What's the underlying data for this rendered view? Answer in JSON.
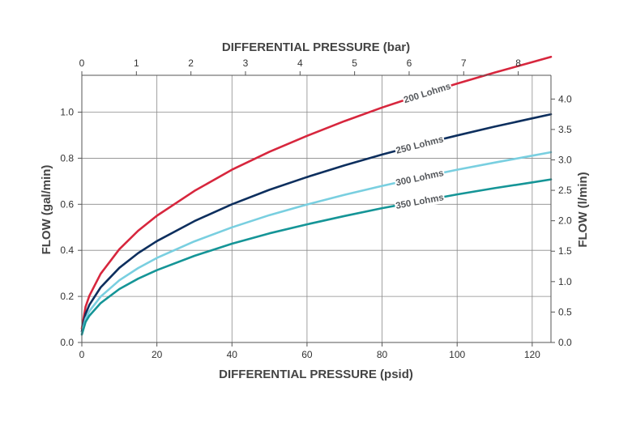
{
  "chart_data": {
    "type": "line",
    "title": "",
    "xlabel": "DIFFERENTIAL PRESSURE (psid)",
    "x2label": "DIFFERENTIAL PRESSURE (bar)",
    "ylabel": "FLOW (gal/min)",
    "y2label": "FLOW (l/min)",
    "xlim": [
      0,
      125
    ],
    "ylim": [
      0,
      1.16
    ],
    "x2lim": [
      0,
      8.6
    ],
    "y2lim": [
      0,
      4.39
    ],
    "xticks": [
      0,
      20,
      40,
      60,
      80,
      100,
      120
    ],
    "yticks": [
      "0.0",
      "0.2",
      "0.4",
      "0.6",
      "0.8",
      "1.0"
    ],
    "x2ticks": [
      0,
      1,
      2,
      3,
      4,
      5,
      6,
      7,
      8
    ],
    "y2ticks": [
      "0.0",
      "0.5",
      "1.0",
      "1.5",
      "2.0",
      "2.5",
      "3.0",
      "3.5",
      "4.0"
    ],
    "grid": true,
    "legend": "inline labels on curves",
    "x": [
      0,
      1,
      2,
      5,
      10,
      15,
      20,
      30,
      40,
      50,
      60,
      70,
      80,
      90,
      100,
      110,
      120,
      125
    ],
    "series": [
      {
        "name": "200 Lohms",
        "color": "#d7263d",
        "label_at": 92,
        "values": [
          0.06,
          0.155,
          0.203,
          0.298,
          0.405,
          0.485,
          0.55,
          0.658,
          0.75,
          0.828,
          0.897,
          0.961,
          1.02,
          1.074,
          1.124,
          1.172,
          1.217,
          1.24
        ]
      },
      {
        "name": "250 Lohms",
        "color": "#0d2f5e",
        "label_at": 90,
        "values": [
          0.048,
          0.124,
          0.163,
          0.239,
          0.324,
          0.388,
          0.44,
          0.527,
          0.6,
          0.663,
          0.718,
          0.769,
          0.816,
          0.859,
          0.899,
          0.937,
          0.973,
          0.991
        ]
      },
      {
        "name": "300 Lohms",
        "color": "#79cfe0",
        "label_at": 90,
        "values": [
          0.04,
          0.103,
          0.136,
          0.199,
          0.27,
          0.323,
          0.367,
          0.439,
          0.5,
          0.553,
          0.599,
          0.641,
          0.68,
          0.716,
          0.75,
          0.781,
          0.811,
          0.826
        ]
      },
      {
        "name": "350 Lohms",
        "color": "#159597",
        "label_at": 90,
        "values": [
          0.034,
          0.089,
          0.116,
          0.171,
          0.232,
          0.277,
          0.314,
          0.376,
          0.429,
          0.474,
          0.513,
          0.549,
          0.583,
          0.613,
          0.643,
          0.67,
          0.695,
          0.708
        ]
      }
    ]
  }
}
